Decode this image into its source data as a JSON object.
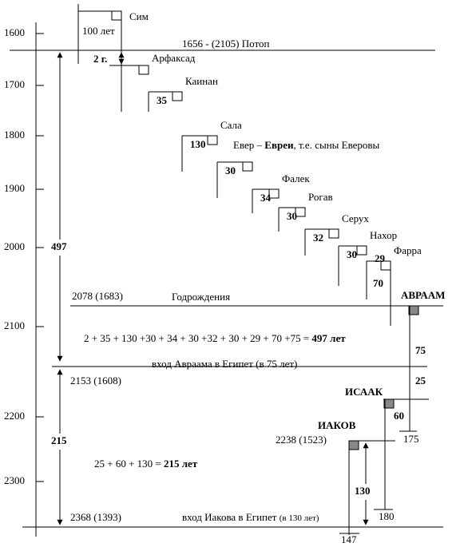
{
  "axis_years": [
    "1600",
    "1700",
    "1800",
    "1900",
    "2000",
    "2100",
    "2200",
    "2300"
  ],
  "sim": {
    "name": "Сим",
    "span": "100 лет"
  },
  "flood": "1656 - (2105)   Потоп",
  "gap": "2 г.",
  "patriarchs": [
    {
      "name": "Арфаксад"
    },
    {
      "name": "Каинан",
      "years": "35"
    },
    {
      "name": "Сала",
      "years": "130"
    },
    {
      "name": "Евер – ",
      "bold": "Евреи",
      "rest": ", т.е. сыны Еверовы",
      "years": "30"
    },
    {
      "name": "Фалек",
      "years": "34"
    },
    {
      "name": "Рогав",
      "years": "30"
    },
    {
      "name": "Серух",
      "years": "32"
    },
    {
      "name": "Нахор",
      "years": "30"
    },
    {
      "name": "Фарра",
      "years": "29"
    }
  ],
  "farra_years": "70",
  "abraham_birth": {
    "date": "2078 (1683)",
    "label": "Годрождения",
    "name": "АВРААМ"
  },
  "sum1": {
    "text": "2 + 35 + 130 +30 + 34 + 30 +32 + 30 + 29 + 70 +75 = ",
    "bold": "497 лет"
  },
  "total1": "497",
  "abraham_years": "75",
  "egypt1": {
    "label": "вход Авраама в Египет (в 75 лет)",
    "date": "2153 (1608)"
  },
  "isaac": {
    "years_before": "25",
    "name": "ИСААК",
    "years": "60",
    "death": "175"
  },
  "jacob": {
    "name": "ИАКОВ",
    "date": "2238 (1523)",
    "years": "130",
    "death_isaac": "180",
    "death": "147"
  },
  "total2": "215",
  "sum2": {
    "text": "25 + 60 + 130 = ",
    "bold": "215 лет"
  },
  "egypt2": {
    "date": "2368 (1393)",
    "label": "вход Иакова в Египет ",
    "note": "(в 130 лет)"
  }
}
